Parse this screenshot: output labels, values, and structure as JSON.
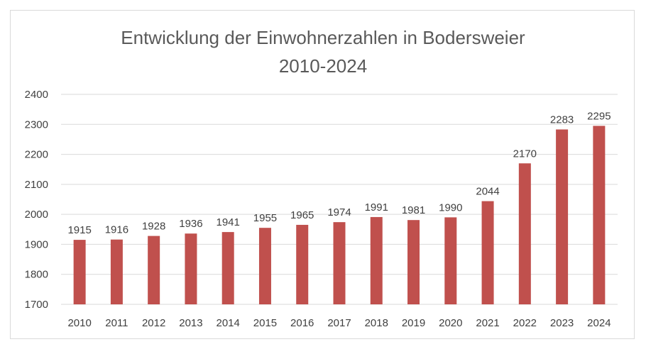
{
  "chart_data": {
    "type": "bar",
    "title": "Entwicklung der Einwohnerzahlen in Bodersweier",
    "subtitle": "2010-2024",
    "xlabel": "",
    "ylabel": "",
    "categories": [
      "2010",
      "2011",
      "2012",
      "2013",
      "2014",
      "2015",
      "2016",
      "2017",
      "2018",
      "2019",
      "2020",
      "2021",
      "2022",
      "2023",
      "2024"
    ],
    "values": [
      1915,
      1916,
      1928,
      1936,
      1941,
      1955,
      1965,
      1974,
      1991,
      1981,
      1990,
      2044,
      2170,
      2283,
      2295
    ],
    "ylim": [
      1700,
      2400
    ],
    "yticks": [
      1700,
      1800,
      1900,
      2000,
      2100,
      2200,
      2300,
      2400
    ],
    "grid": true,
    "legend": "none",
    "bar_color": "#c0504d",
    "grid_color": "#d9d9d9"
  }
}
